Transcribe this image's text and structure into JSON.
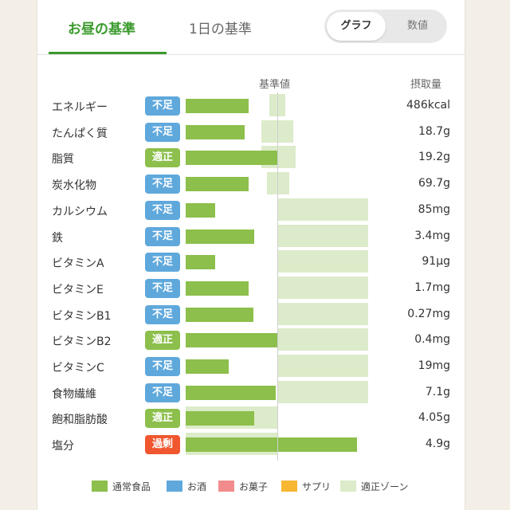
{
  "tabs": {
    "lunch_label": "お昼の基準",
    "day_label": "1日の基準"
  },
  "view_toggle": {
    "graph_label": "グラフ",
    "value_label": "数値",
    "selected": "グラフ"
  },
  "headers": {
    "standard": "基準値",
    "intake": "摂取量"
  },
  "colors": {
    "normal_food": "#8cbf4b",
    "alcohol": "#5fa8dc",
    "sweets": "#f28c8c",
    "supplement": "#f7b733",
    "optimal_zone": "#dcebc9",
    "badge_low": "#5fa8dc",
    "badge_ok": "#8cbf4b",
    "badge_high": "#f0572f"
  },
  "nutrients": [
    {
      "name": "エネルギー",
      "status": "不足",
      "status_type": "low",
      "intake": "486kcal",
      "level": 0.69,
      "zone_min": 0.91,
      "zone_max": 1.09
    },
    {
      "name": "たんぱく質",
      "status": "不足",
      "status_type": "low",
      "intake": "18.7g",
      "level": 0.64,
      "zone_min": 0.83,
      "zone_max": 1.17
    },
    {
      "name": "脂質",
      "status": "適正",
      "status_type": "ok",
      "intake": "19.2g",
      "level": 1.01,
      "zone_min": 0.83,
      "zone_max": 1.2
    },
    {
      "name": "炭水化物",
      "status": "不足",
      "status_type": "low",
      "intake": "69.7g",
      "level": 0.69,
      "zone_min": 0.89,
      "zone_max": 1.13
    },
    {
      "name": "カルシウム",
      "status": "不足",
      "status_type": "low",
      "intake": "85mg",
      "level": 0.32,
      "zone_min": 1.0,
      "zone_max": 1.99
    },
    {
      "name": "鉄",
      "status": "不足",
      "status_type": "low",
      "intake": "3.4mg",
      "level": 0.75,
      "zone_min": 1.0,
      "zone_max": 1.99
    },
    {
      "name": "ビタミンA",
      "status": "不足",
      "status_type": "low",
      "intake": "91µg",
      "level": 0.32,
      "zone_min": 1.0,
      "zone_max": 1.99
    },
    {
      "name": "ビタミンE",
      "status": "不足",
      "status_type": "low",
      "intake": "1.7mg",
      "level": 0.69,
      "zone_min": 1.0,
      "zone_max": 1.99
    },
    {
      "name": "ビタミンB1",
      "status": "不足",
      "status_type": "low",
      "intake": "0.27mg",
      "level": 0.74,
      "zone_min": 1.0,
      "zone_max": 1.99
    },
    {
      "name": "ビタミンB2",
      "status": "適正",
      "status_type": "ok",
      "intake": "0.4mg",
      "level": 1.0,
      "zone_min": 1.0,
      "zone_max": 1.99
    },
    {
      "name": "ビタミンC",
      "status": "不足",
      "status_type": "low",
      "intake": "19mg",
      "level": 0.47,
      "zone_min": 1.0,
      "zone_max": 1.99
    },
    {
      "name": "食物繊維",
      "status": "不足",
      "status_type": "low",
      "intake": "7.1g",
      "level": 0.98,
      "zone_min": 1.0,
      "zone_max": 1.99
    },
    {
      "name": "飽和脂肪酸",
      "status": "適正",
      "status_type": "ok",
      "intake": "4.05g",
      "level": 0.75,
      "zone_min": 0.0,
      "zone_max": 1.0
    },
    {
      "name": "塩分",
      "status": "過剰",
      "status_type": "high",
      "intake": "4.9g",
      "level": 1.87,
      "zone_min": 0.0,
      "zone_max": 1.0
    }
  ],
  "legend": [
    {
      "label": "通常食品",
      "color": "#8cbf4b"
    },
    {
      "label": "お酒",
      "color": "#5fa8dc"
    },
    {
      "label": "お菓子",
      "color": "#f28c8c"
    },
    {
      "label": "サプリ",
      "color": "#f7b733"
    },
    {
      "label": "適正ゾーン",
      "color": "#dcebc9"
    }
  ]
}
